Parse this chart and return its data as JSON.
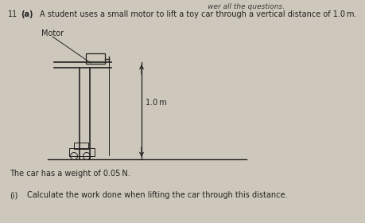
{
  "bg_color": "#cec8bc",
  "text_color": "#222222",
  "header_text": "wer all the questions.",
  "q11": "11",
  "qa": "(a)",
  "intro_text": "A student uses a small motor to lift a toy car through a vertical distance of 1.0 m.",
  "motor_label": "Motor",
  "distance_label": "1.0 m",
  "weight_text": "The car has a weight of 0.05 N.",
  "sub_label": "(i)",
  "sub_text": "Calculate the work done when lifting the car through this distance.",
  "header_fontsize": 6.5,
  "main_fontsize": 7.0,
  "label_fontsize": 7.0
}
